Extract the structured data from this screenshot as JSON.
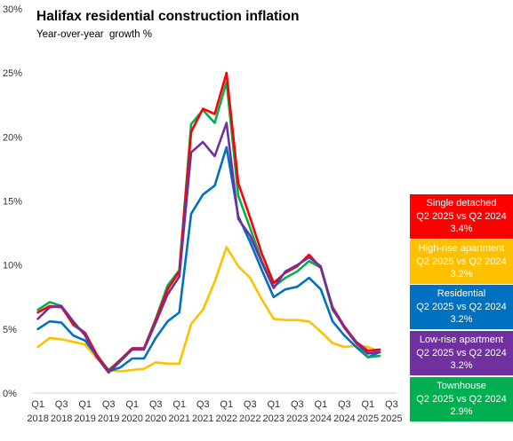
{
  "title": "Halifax residential construction inflation",
  "subtitle": "Year-over-year  growth %",
  "legend_boxes": [
    {
      "name": "Single detached",
      "comparison": "Q2 2025 vs Q2 2024",
      "value": "3.4%",
      "color": "#ff0000"
    },
    {
      "name": "High-rise apartment",
      "comparison": "Q2 2025 vs Q2 2024",
      "value": "3.2%",
      "color": "#ffc000"
    },
    {
      "name": "Residential",
      "comparison": "Q2 2025 vs Q2 2024",
      "value": "3.2%",
      "color": "#0070c0"
    },
    {
      "name": "Low-rise apartment",
      "comparison": "Q2 2025 vs Q2 2024",
      "value": "3.2%",
      "color": "#7030a0"
    },
    {
      "name": "Townhouse",
      "comparison": "Q2 2025 vs Q2 2024",
      "value": "2.9%",
      "color": "#00b050"
    }
  ],
  "chart_data": {
    "type": "line",
    "title": "Halifax residential construction inflation",
    "subtitle": "Year-over-year  growth %",
    "x": [
      "Q1 2018",
      "Q2 2018",
      "Q3 2018",
      "Q4 2018",
      "Q1 2019",
      "Q2 2019",
      "Q3 2019",
      "Q4 2019",
      "Q1 2020",
      "Q2 2020",
      "Q3 2020",
      "Q4 2020",
      "Q1 2021",
      "Q2 2021",
      "Q3 2021",
      "Q4 2021",
      "Q1 2022",
      "Q2 2022",
      "Q3 2022",
      "Q4 2022",
      "Q1 2023",
      "Q2 2023",
      "Q3 2023",
      "Q4 2023",
      "Q1 2024",
      "Q2 2024",
      "Q3 2024",
      "Q4 2024",
      "Q1 2025",
      "Q2 2025"
    ],
    "x_tick_labels": [
      {
        "quarter": "Q1",
        "year": "2018"
      },
      {
        "quarter": "Q3",
        "year": "2018"
      },
      {
        "quarter": "Q1",
        "year": "2019"
      },
      {
        "quarter": "Q3",
        "year": "2019"
      },
      {
        "quarter": "Q1",
        "year": "2020"
      },
      {
        "quarter": "Q3",
        "year": "2020"
      },
      {
        "quarter": "Q1",
        "year": "2021"
      },
      {
        "quarter": "Q3",
        "year": "2021"
      },
      {
        "quarter": "Q1",
        "year": "2022"
      },
      {
        "quarter": "Q3",
        "year": "2022"
      },
      {
        "quarter": "Q1",
        "year": "2023"
      },
      {
        "quarter": "Q3",
        "year": "2023"
      },
      {
        "quarter": "Q1",
        "year": "2024"
      },
      {
        "quarter": "Q3",
        "year": "2024"
      },
      {
        "quarter": "Q1",
        "year": "2025"
      },
      {
        "quarter": "Q3",
        "year": "2025"
      }
    ],
    "y_ticks": [
      0,
      5,
      10,
      15,
      20,
      25,
      30
    ],
    "y_tick_labels": [
      "0%",
      "5%",
      "10%",
      "15%",
      "20%",
      "25%",
      "30%"
    ],
    "ylim": [
      0,
      30
    ],
    "grid": false,
    "legend_position": "right",
    "series": [
      {
        "name": "High-rise apartment",
        "color": "#ffc000",
        "values": [
          3.6,
          4.3,
          4.2,
          4.0,
          3.8,
          2.7,
          1.8,
          1.7,
          1.8,
          1.9,
          2.4,
          2.3,
          2.3,
          5.4,
          6.5,
          8.7,
          11.4,
          9.9,
          9.0,
          7.3,
          5.8,
          5.7,
          5.7,
          5.6,
          4.8,
          3.9,
          3.6,
          3.7,
          3.6,
          3.2
        ]
      },
      {
        "name": "Residential",
        "color": "#0070c0",
        "values": [
          5.0,
          5.6,
          5.5,
          4.5,
          4.1,
          2.9,
          1.7,
          2.0,
          2.7,
          2.7,
          4.3,
          5.6,
          6.3,
          14.0,
          15.5,
          16.2,
          19.2,
          13.8,
          11.8,
          9.6,
          7.5,
          8.1,
          8.3,
          9.0,
          8.1,
          5.6,
          4.5,
          3.6,
          2.8,
          3.2
        ]
      },
      {
        "name": "Townhouse",
        "color": "#00b050",
        "values": [
          6.5,
          7.1,
          6.8,
          5.3,
          4.7,
          2.9,
          1.8,
          2.6,
          3.5,
          3.5,
          5.8,
          8.4,
          9.6,
          21.0,
          22.1,
          21.1,
          24.3,
          15.4,
          12.9,
          10.3,
          8.3,
          9.0,
          9.5,
          10.3,
          9.8,
          6.5,
          5.2,
          4.0,
          2.8,
          2.9
        ]
      },
      {
        "name": "Single detached",
        "color": "#ff0000",
        "values": [
          6.3,
          6.8,
          6.7,
          5.4,
          4.7,
          3.0,
          1.7,
          2.6,
          3.5,
          3.5,
          5.7,
          8.1,
          9.5,
          20.4,
          22.2,
          21.8,
          25.0,
          16.4,
          13.7,
          10.9,
          8.6,
          9.4,
          9.9,
          10.8,
          9.8,
          6.7,
          5.2,
          4.0,
          3.3,
          3.4
        ]
      },
      {
        "name": "Low-rise apartment",
        "color": "#7030a0",
        "values": [
          5.8,
          6.7,
          6.8,
          5.6,
          4.5,
          2.8,
          1.6,
          2.5,
          3.4,
          3.4,
          5.5,
          7.7,
          9.1,
          18.8,
          19.6,
          18.5,
          21.1,
          13.6,
          12.3,
          10.2,
          8.2,
          9.5,
          10.0,
          10.6,
          9.9,
          6.6,
          5.1,
          3.9,
          3.1,
          3.2
        ]
      }
    ]
  }
}
